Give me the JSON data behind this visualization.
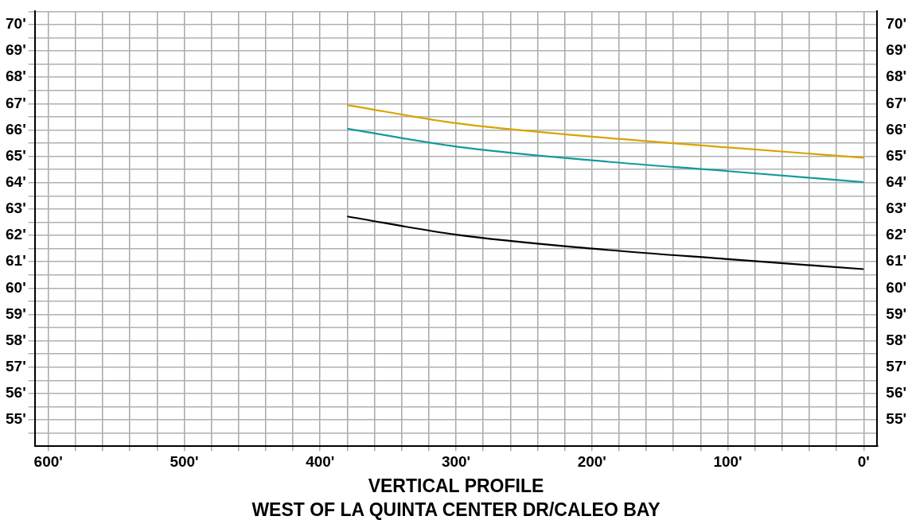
{
  "chart_data": {
    "type": "line",
    "title": "VERTICAL PROFILE",
    "subtitle": "WEST OF LA QUINTA CENTER DR/CALEO BAY",
    "x": [
      380,
      300,
      200,
      100,
      0
    ],
    "series": [
      {
        "color": "#d9a300",
        "values": [
          66.95,
          66.26,
          65.75,
          65.34,
          64.95
        ]
      },
      {
        "color": "#139a9c",
        "values": [
          66.05,
          65.37,
          64.85,
          64.44,
          64.02
        ]
      },
      {
        "color": "#000000",
        "values": [
          62.72,
          62.03,
          61.5,
          61.1,
          60.72
        ]
      }
    ],
    "xlim": [
      610,
      -10
    ],
    "xticks": [
      {
        "value": 600,
        "label": "600'"
      },
      {
        "value": 580,
        "label": null
      },
      {
        "value": 560,
        "label": null
      },
      {
        "value": 540,
        "label": null
      },
      {
        "value": 520,
        "label": null
      },
      {
        "value": 500,
        "label": "500'"
      },
      {
        "value": 480,
        "label": null
      },
      {
        "value": 460,
        "label": null
      },
      {
        "value": 440,
        "label": null
      },
      {
        "value": 420,
        "label": null
      },
      {
        "value": 400,
        "label": "400'"
      },
      {
        "value": 380,
        "label": null
      },
      {
        "value": 360,
        "label": null
      },
      {
        "value": 340,
        "label": null
      },
      {
        "value": 320,
        "label": null
      },
      {
        "value": 300,
        "label": "300'"
      },
      {
        "value": 280,
        "label": null
      },
      {
        "value": 260,
        "label": null
      },
      {
        "value": 240,
        "label": null
      },
      {
        "value": 220,
        "label": null
      },
      {
        "value": 200,
        "label": "200'"
      },
      {
        "value": 180,
        "label": null
      },
      {
        "value": 160,
        "label": null
      },
      {
        "value": 140,
        "label": null
      },
      {
        "value": 120,
        "label": null
      },
      {
        "value": 100,
        "label": "100'"
      },
      {
        "value": 80,
        "label": null
      },
      {
        "value": 60,
        "label": null
      },
      {
        "value": 40,
        "label": null
      },
      {
        "value": 20,
        "label": null
      },
      {
        "value": 0,
        "label": "0'"
      }
    ],
    "ylim": [
      54,
      70.5
    ],
    "yticks": [
      {
        "value": 54.5,
        "label": null
      },
      {
        "value": 55,
        "label": "55'"
      },
      {
        "value": 55.5,
        "label": null
      },
      {
        "value": 56,
        "label": "56'"
      },
      {
        "value": 56.5,
        "label": null
      },
      {
        "value": 57,
        "label": "57'"
      },
      {
        "value": 57.5,
        "label": null
      },
      {
        "value": 58,
        "label": "58'"
      },
      {
        "value": 58.5,
        "label": null
      },
      {
        "value": 59,
        "label": "59'"
      },
      {
        "value": 59.5,
        "label": null
      },
      {
        "value": 60,
        "label": "60'"
      },
      {
        "value": 60.5,
        "label": null
      },
      {
        "value": 61,
        "label": "61'"
      },
      {
        "value": 61.5,
        "label": null
      },
      {
        "value": 62,
        "label": "62'"
      },
      {
        "value": 62.5,
        "label": null
      },
      {
        "value": 63,
        "label": "63'"
      },
      {
        "value": 63.5,
        "label": null
      },
      {
        "value": 64,
        "label": "64'"
      },
      {
        "value": 64.5,
        "label": null
      },
      {
        "value": 65,
        "label": "65'"
      },
      {
        "value": 65.5,
        "label": null
      },
      {
        "value": 66,
        "label": "66'"
      },
      {
        "value": 66.5,
        "label": null
      },
      {
        "value": 67,
        "label": "67'"
      },
      {
        "value": 67.5,
        "label": null
      },
      {
        "value": 68,
        "label": "68'"
      },
      {
        "value": 68.5,
        "label": null
      },
      {
        "value": 69,
        "label": "69'"
      },
      {
        "value": 69.5,
        "label": null
      },
      {
        "value": 70,
        "label": "70'"
      },
      {
        "value": 70.5,
        "label": null
      }
    ],
    "y2lim": [
      54,
      70.5
    ],
    "y2ticks": [
      {
        "value": 54.5,
        "label": null
      },
      {
        "value": 55,
        "label": "55'"
      },
      {
        "value": 55.5,
        "label": null
      },
      {
        "value": 56,
        "label": "56'"
      },
      {
        "value": 56.5,
        "label": null
      },
      {
        "value": 57,
        "label": "57'"
      },
      {
        "value": 57.5,
        "label": null
      },
      {
        "value": 58,
        "label": "58'"
      },
      {
        "value": 58.5,
        "label": null
      },
      {
        "value": 59,
        "label": "59'"
      },
      {
        "value": 59.5,
        "label": null
      },
      {
        "value": 60,
        "label": "60'"
      },
      {
        "value": 60.5,
        "label": null
      },
      {
        "value": 61,
        "label": "61'"
      },
      {
        "value": 61.5,
        "label": null
      },
      {
        "value": 62,
        "label": "62'"
      },
      {
        "value": 62.5,
        "label": null
      },
      {
        "value": 63,
        "label": "63'"
      },
      {
        "value": 63.5,
        "label": null
      },
      {
        "value": 64,
        "label": "64'"
      },
      {
        "value": 64.5,
        "label": null
      },
      {
        "value": 65,
        "label": "65'"
      },
      {
        "value": 65.5,
        "label": null
      },
      {
        "value": 66,
        "label": "66'"
      },
      {
        "value": 66.5,
        "label": null
      },
      {
        "value": 67,
        "label": "67'"
      },
      {
        "value": 67.5,
        "label": null
      },
      {
        "value": 68,
        "label": "68'"
      },
      {
        "value": 68.5,
        "label": null
      },
      {
        "value": 69,
        "label": "69'"
      },
      {
        "value": 69.5,
        "label": null
      },
      {
        "value": 70,
        "label": "70'"
      },
      {
        "value": 70.5,
        "label": null
      }
    ],
    "grid": true,
    "legend": false,
    "marker": "none",
    "line_style": "solid"
  }
}
